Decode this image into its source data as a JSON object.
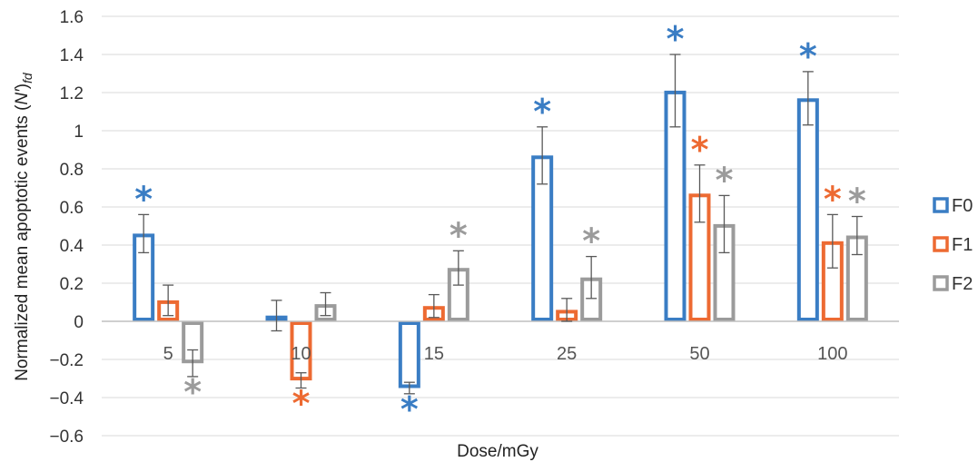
{
  "chart_data": {
    "type": "bar",
    "title": "",
    "xlabel": "Dose/mGy",
    "ylabel_main": "Normalized mean apoptotic events (",
    "ylabel_var": "N′",
    "ylabel_close": ")",
    "ylabel_sub": "fd",
    "ylim": [
      -0.6,
      1.6
    ],
    "ytick_step": 0.2,
    "yticks": [
      "1.6",
      "1.4",
      "1.2",
      "1",
      "0.8",
      "0.6",
      "0.4",
      "0.2",
      "0",
      "−0.2",
      "−0.4",
      "−0.6"
    ],
    "grid": true,
    "legend_position": "right",
    "categories": [
      "5",
      "10",
      "15",
      "25",
      "50",
      "100"
    ],
    "series": [
      {
        "name": "F0",
        "color": "#3a7dc4",
        "values": [
          0.46,
          0.03,
          -0.35,
          0.87,
          1.21,
          1.17
        ],
        "errors": [
          0.1,
          0.08,
          0.03,
          0.15,
          0.19,
          0.14
        ],
        "significant": [
          true,
          false,
          true,
          true,
          true,
          true
        ]
      },
      {
        "name": "F1",
        "color": "#ed6a32",
        "values": [
          0.11,
          -0.31,
          0.08,
          0.06,
          0.67,
          0.42
        ],
        "errors": [
          0.08,
          0.04,
          0.06,
          0.06,
          0.15,
          0.14
        ],
        "significant": [
          false,
          true,
          false,
          false,
          true,
          true
        ]
      },
      {
        "name": "F2",
        "color": "#9b9b9b",
        "values": [
          -0.22,
          0.09,
          0.28,
          0.23,
          0.51,
          0.45
        ],
        "errors": [
          0.07,
          0.06,
          0.09,
          0.11,
          0.15,
          0.1
        ],
        "significant": [
          true,
          false,
          true,
          true,
          true,
          true
        ]
      }
    ],
    "significance_marker": "*"
  }
}
